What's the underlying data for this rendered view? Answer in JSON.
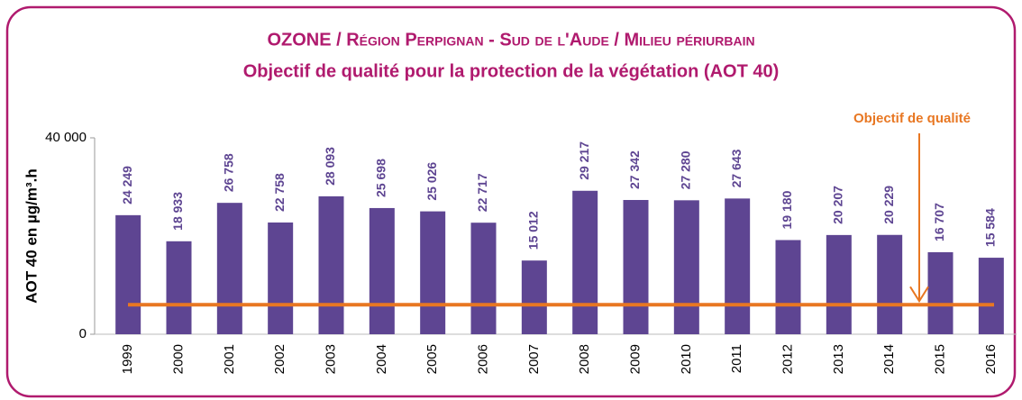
{
  "chart_data": {
    "type": "bar",
    "title": "OZONE / Région Perpignan - Sud de l'Aude / Milieu périurbain",
    "subtitle": "Objectif de qualité pour la protection de la végétation (AOT 40)",
    "y_label": "AOT 40 en µg/m³.h",
    "categories": [
      "1999",
      "2000",
      "2001",
      "2002",
      "2003",
      "2004",
      "2005",
      "2006",
      "2007",
      "2008",
      "2009",
      "2010",
      "2011",
      "2012",
      "2013",
      "2014",
      "2015",
      "2016"
    ],
    "values": [
      24249,
      18933,
      26758,
      22758,
      28093,
      25698,
      25026,
      22717,
      15012,
      29217,
      27342,
      27280,
      27643,
      19180,
      20207,
      20229,
      16707,
      15584
    ],
    "value_labels": [
      "24 249",
      "18 933",
      "26 758",
      "22 758",
      "28 093",
      "25 698",
      "25 026",
      "22 717",
      "15 012",
      "29 217",
      "27 342",
      "27 280",
      "27 643",
      "19 180",
      "20 207",
      "20 229",
      "16 707",
      "15 584"
    ],
    "color": "#5e4592",
    "ylim": [
      0,
      40000
    ],
    "yticks": [
      0,
      {
        "value": 40000,
        "label": "40 000"
      }
    ],
    "threshold": {
      "value": 6000,
      "color": "#e87722",
      "label": "Objectif de qualité"
    }
  }
}
